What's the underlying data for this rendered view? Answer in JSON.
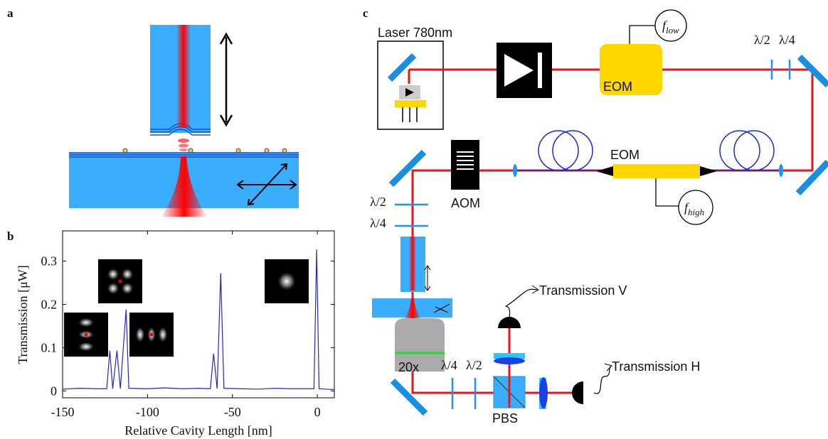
{
  "panels": {
    "a": "a",
    "b": "b",
    "c": "c"
  },
  "diagram": {
    "laser": "Laser 780nm",
    "f_low": {
      "symbol": "f",
      "subscript": "low"
    },
    "eom_top": "EOM",
    "waveplate_top": [
      "λ/2",
      "λ/4"
    ],
    "eom_fiber": "EOM",
    "f_high": {
      "symbol": "f",
      "subscript": "high"
    },
    "aom": "AOM",
    "waveplate_left": [
      "λ/2",
      "λ/4"
    ],
    "objective": "20x",
    "waveplate_bottom": [
      "λ/4",
      "λ/2"
    ],
    "pbs": "PBS",
    "detector_v": "Transmission V",
    "detector_h": "Transmission H"
  },
  "chart_data": {
    "type": "line",
    "xlabel": "Relative Cavity Length [nm]",
    "ylabel": "Transmission [μW]",
    "x": [
      -150,
      -140,
      -130,
      -124,
      -122.2,
      -120.5,
      -118,
      -116,
      -112.6,
      -111,
      -100,
      -90,
      -80,
      -70,
      -63,
      -61.1,
      -59,
      -56.9,
      -55,
      -45,
      -35,
      -25,
      -15,
      -5,
      -2,
      -0.4,
      1,
      5,
      10
    ],
    "values": [
      0.004,
      0.006,
      0.005,
      0.005,
      0.093,
      0.005,
      0.093,
      0.005,
      0.188,
      0.006,
      0.005,
      0.007,
      0.005,
      0.006,
      0.005,
      0.086,
      0.005,
      0.272,
      0.006,
      0.005,
      0.004,
      0.006,
      0.005,
      0.005,
      0.005,
      0.327,
      0.005,
      0.004,
      0.003
    ],
    "color": "#2424d0",
    "xlim": [
      -150,
      10
    ],
    "ylim": [
      -0.016,
      0.37
    ],
    "xticks": [
      -150,
      -100,
      -50,
      0
    ],
    "yticks": [
      0,
      0.1,
      0.2,
      0.3
    ]
  }
}
